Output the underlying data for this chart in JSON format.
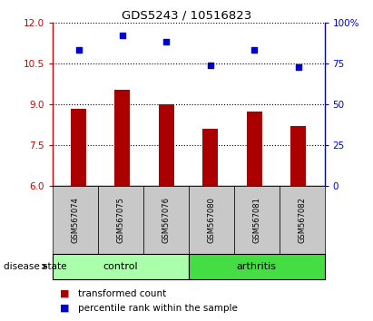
{
  "title": "GDS5243 / 10516823",
  "samples": [
    "GSM567074",
    "GSM567075",
    "GSM567076",
    "GSM567080",
    "GSM567081",
    "GSM567082"
  ],
  "transformed_counts": [
    8.85,
    9.55,
    9.0,
    8.1,
    8.75,
    8.2
  ],
  "percentile_ranks": [
    83,
    92,
    88,
    74,
    83,
    73
  ],
  "bar_color": "#aa0000",
  "dot_color": "#0000cc",
  "ylim_left": [
    6,
    12
  ],
  "ylim_right": [
    0,
    100
  ],
  "yticks_left": [
    6,
    7.5,
    9,
    10.5,
    12
  ],
  "yticks_right": [
    0,
    25,
    50,
    75,
    100
  ],
  "ytick_labels_right": [
    "0",
    "25",
    "50",
    "75",
    "100%"
  ],
  "groups": [
    {
      "label": "control",
      "n": 3,
      "color": "#aaffaa"
    },
    {
      "label": "arthritis",
      "n": 3,
      "color": "#44dd44"
    }
  ],
  "disease_state_label": "disease state",
  "legend_bar_label": "transformed count",
  "legend_dot_label": "percentile rank within the sample",
  "dotted_line_color": "#000000",
  "left_axis_color": "#cc0000",
  "right_axis_color": "#0000cc",
  "bg_color": "#ffffff",
  "plot_bg_color": "#ffffff",
  "tick_label_area_color": "#c8c8c8"
}
